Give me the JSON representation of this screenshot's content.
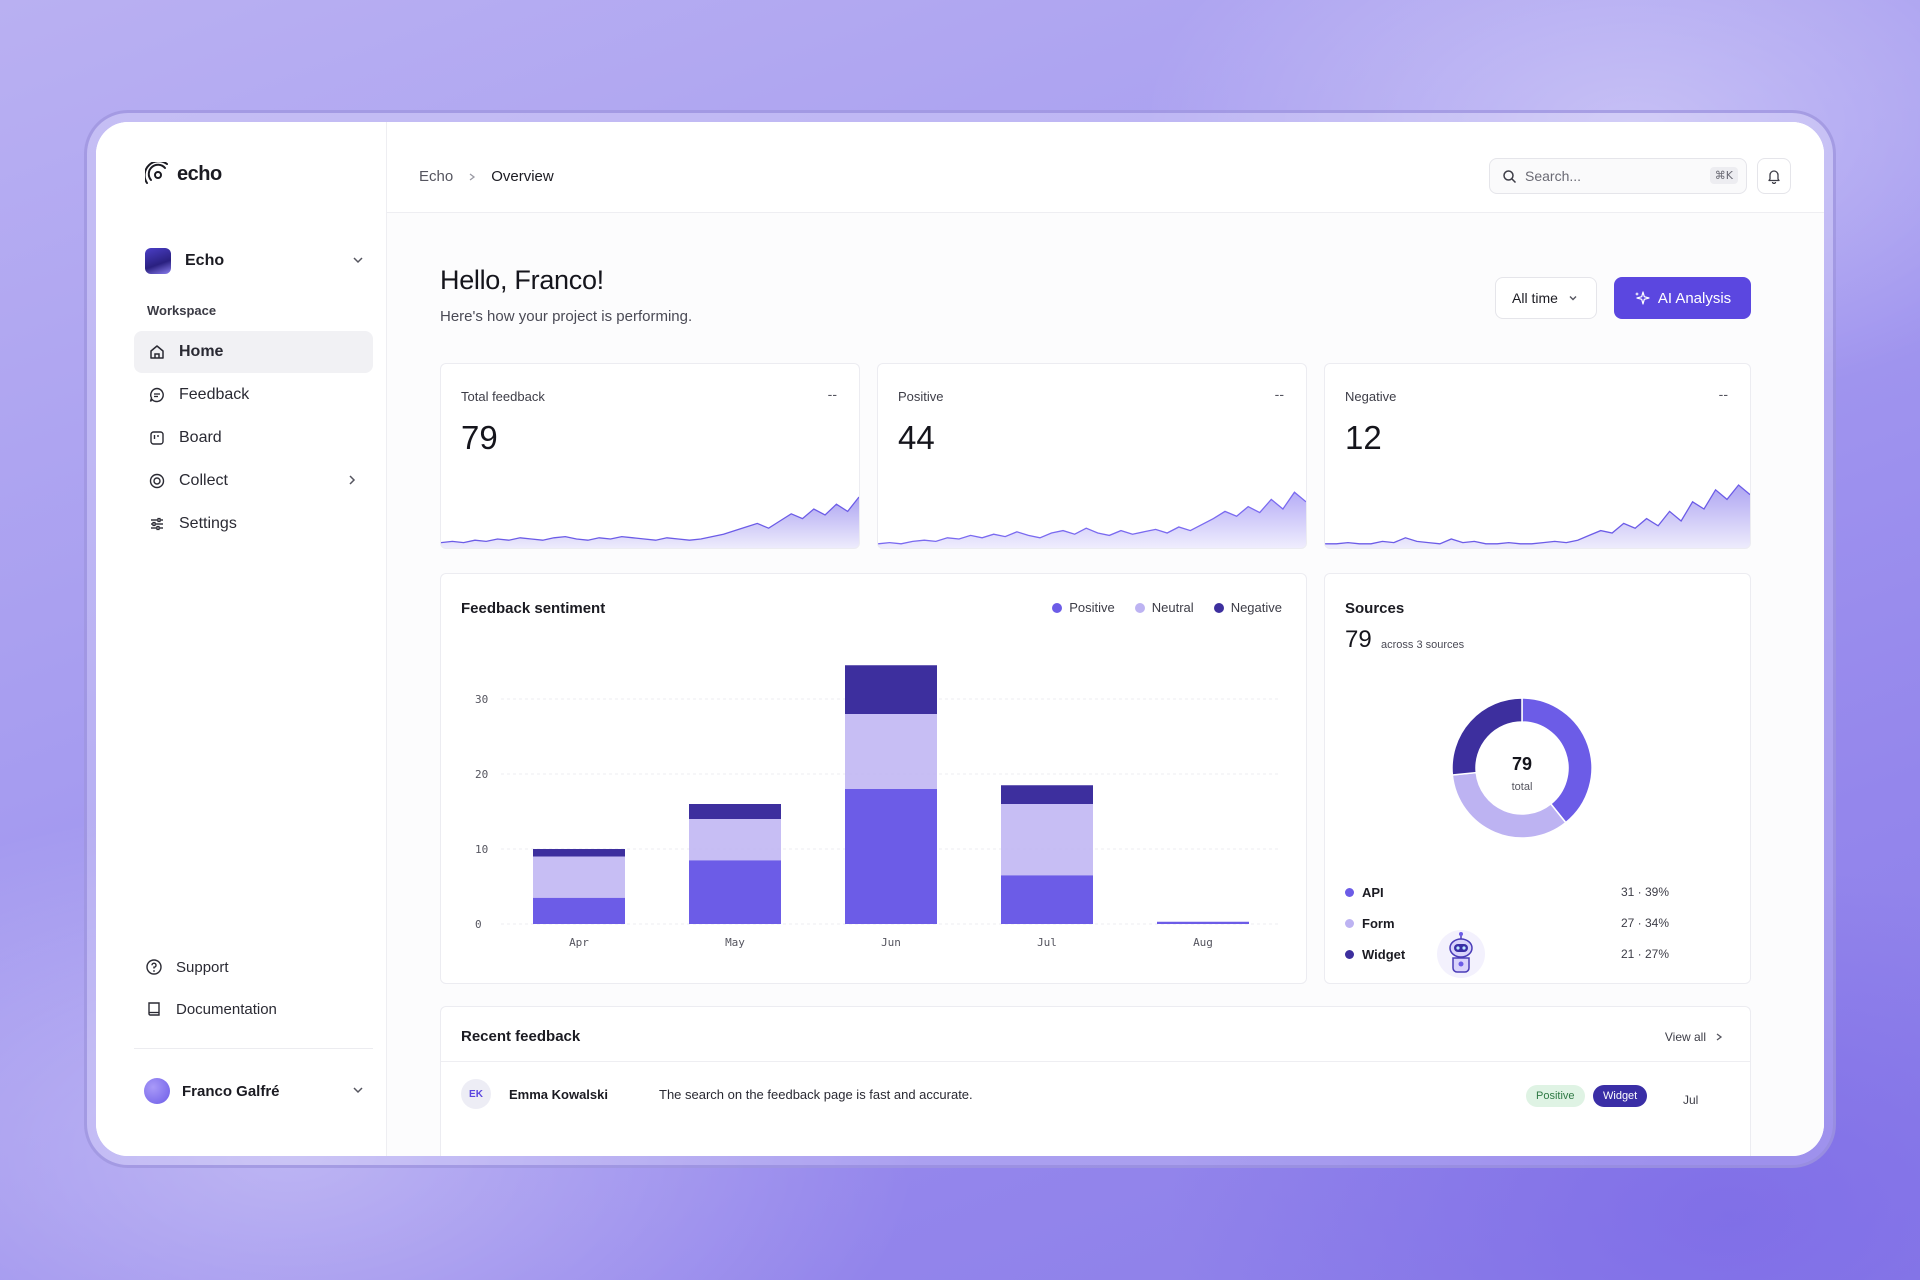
{
  "app": {
    "logo_text": "echo"
  },
  "workspace": {
    "name": "Echo",
    "section_label": "Workspace"
  },
  "nav": {
    "items": [
      {
        "label": "Home",
        "icon": "home-icon",
        "active": true
      },
      {
        "label": "Feedback",
        "icon": "chat-icon"
      },
      {
        "label": "Board",
        "icon": "board-icon"
      },
      {
        "label": "Collect",
        "icon": "collect-icon",
        "has_submenu": true
      },
      {
        "label": "Settings",
        "icon": "sliders-icon"
      }
    ],
    "bottom": [
      {
        "label": "Support",
        "icon": "help-icon"
      },
      {
        "label": "Documentation",
        "icon": "book-icon"
      }
    ]
  },
  "user": {
    "name": "Franco Galfré"
  },
  "header": {
    "breadcrumb": [
      "Echo",
      "Overview"
    ],
    "search_placeholder": "Search...",
    "search_shortcut": "⌘K"
  },
  "page": {
    "greeting": "Hello, Franco!",
    "subtitle": "Here's how your project is performing.",
    "time_filter": "All time",
    "ai_button": "AI Analysis"
  },
  "stats": [
    {
      "title": "Total feedback",
      "value": "79",
      "delta": "--"
    },
    {
      "title": "Positive",
      "value": "44",
      "delta": "--"
    },
    {
      "title": "Negative",
      "value": "12",
      "delta": "--"
    }
  ],
  "colors": {
    "accent": "#5b47e0",
    "positive": "#6c5ce7",
    "neutral": "#bdb3f2",
    "negative": "#3d2f9e"
  },
  "chart_data": [
    {
      "type": "bar",
      "stacked": true,
      "title": "Feedback sentiment",
      "categories": [
        "Apr",
        "May",
        "Jun",
        "Jul",
        "Aug"
      ],
      "series": [
        {
          "name": "Positive",
          "values": [
            3.5,
            8.5,
            18,
            6.5,
            0.3
          ]
        },
        {
          "name": "Neutral",
          "values": [
            5.5,
            5.5,
            10,
            9.5,
            0
          ]
        },
        {
          "name": "Negative",
          "values": [
            1,
            2,
            6.5,
            2.5,
            0
          ]
        }
      ],
      "yticks": [
        0,
        10,
        20,
        30
      ],
      "ylim": [
        0,
        36
      ],
      "legend": "top-right",
      "grid": true
    },
    {
      "type": "pie",
      "title": "Sources",
      "total": "79",
      "total_label": "total",
      "subtitle": "across 3 sources",
      "categories": [
        "API",
        "Form",
        "Widget"
      ],
      "values": [
        31,
        27,
        21
      ],
      "labels": [
        "31 · 39%",
        "27 · 34%",
        "21 · 27%"
      ]
    }
  ],
  "recent": {
    "title": "Recent feedback",
    "view_all": "View all",
    "items": [
      {
        "initials": "EK",
        "name": "Emma Kowalski",
        "text": "The search on the feedback page is fast and accurate.",
        "sentiment": "Positive",
        "source": "Widget",
        "date": "Jul"
      }
    ]
  }
}
